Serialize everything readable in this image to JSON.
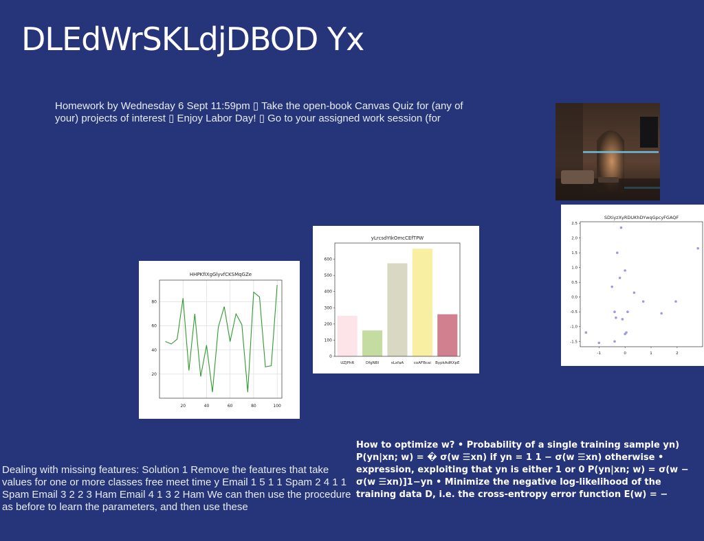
{
  "title": "DLEdWrSKLdjDBOD Yx",
  "homework_text": "Homework by Wednesday 6 Sept 11:59pm ▯ Take the open-book Canvas Quiz for (any of your) projects of interest ▯ Enjoy Labor Day! ▯ Go to your assigned work session (for",
  "missing_features_text": "Dealing with missing features: Solution 1 Remove the features that take values for one or more classes free meet time y Email 1 5 1 1 Spam 2 4 1 1 Spam Email 3 2 2 3 Ham Email 4 1 3 2 Ham We can then use the procedure as before to learn the parameters, and then use these",
  "optimize_text": "How to optimize w? • Probability of a single training sample yn) P(yn|xn; w) = � σ(w ☰xn) if yn = 1 1 − σ(w ☰xn) otherwise • expression, exploiting that yn is either 1 or 0 P(yn|xn; w) = σ(w − σ(w ☰xn)]1−yn • Minimize the negative log-likelihood of the training data D, i.e. the cross-entropy error function E(w) = −",
  "colors": {
    "background": "#263479",
    "line_series": "#2e9a2e",
    "scatter_points": "#9b9be0"
  },
  "chart_data": [
    {
      "type": "line",
      "title": "HHPKfIXgGlyvfCKSMqGZe",
      "x": [
        5,
        10,
        15,
        20,
        25,
        30,
        35,
        40,
        45,
        50,
        55,
        60,
        65,
        70,
        75,
        80,
        85,
        90,
        95,
        100
      ],
      "y": [
        47,
        45,
        49,
        83,
        23,
        70,
        18,
        44,
        5,
        59,
        76,
        47,
        70,
        61,
        5,
        88,
        84,
        26,
        27,
        94
      ],
      "xticks": [
        "20",
        "40",
        "60",
        "80",
        "100"
      ],
      "yticks": [
        "20",
        "40",
        "60",
        "80"
      ],
      "xlim": [
        0,
        104
      ],
      "ylim": [
        0,
        98
      ],
      "grid": true
    },
    {
      "type": "bar",
      "title": "yLrcsdYIkOmcCEfTPW",
      "categories": [
        "UZJPhR",
        "DfgNBI",
        "sLxfaA",
        "coAFBcai",
        "BypkAdRXpE"
      ],
      "values": [
        250,
        160,
        575,
        665,
        260
      ],
      "colors": [
        "#fde4e8",
        "#c5dca0",
        "#d9d9c3",
        "#f9efa2",
        "#d18090"
      ],
      "yticks": [
        "0",
        "100",
        "200",
        "300",
        "400",
        "500",
        "600"
      ],
      "ylim": [
        0,
        700
      ]
    },
    {
      "type": "scatter",
      "title": "SDtiyzXyRDUKhDYwqGpcyFGAQF",
      "points": [
        [
          -1.5,
          -1.2
        ],
        [
          -1.0,
          -1.55
        ],
        [
          -0.4,
          -1.5
        ],
        [
          -0.4,
          -0.5
        ],
        [
          -0.35,
          -0.7
        ],
        [
          -0.5,
          0.35
        ],
        [
          -0.3,
          1.5
        ],
        [
          -0.15,
          2.35
        ],
        [
          -0.2,
          0.65
        ],
        [
          0.0,
          0.9
        ],
        [
          -0.1,
          -0.75
        ],
        [
          0.05,
          -1.2
        ],
        [
          0.0,
          -1.25
        ],
        [
          0.1,
          -0.5
        ],
        [
          0.35,
          0.15
        ],
        [
          0.7,
          -0.15
        ],
        [
          1.4,
          -0.55
        ],
        [
          1.95,
          -0.15
        ],
        [
          2.8,
          1.65
        ]
      ],
      "xticks": [
        "-1",
        "0",
        "1",
        "2"
      ],
      "yticks": [
        "-1.5",
        "-1.0",
        "-0.5",
        "0.0",
        "0.5",
        "1.0",
        "1.5",
        "2.0",
        "2.5"
      ],
      "xlim": [
        -1.72,
        2.98
      ],
      "ylim": [
        -1.68,
        2.55
      ]
    }
  ]
}
